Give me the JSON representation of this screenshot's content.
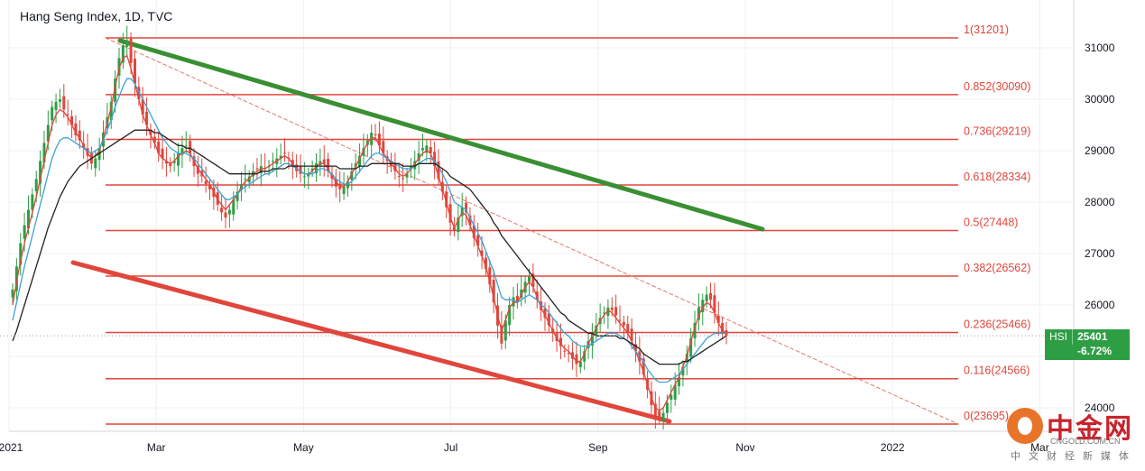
{
  "title": "Hang Seng Index, 1D, TVC",
  "chart_data": {
    "type": "candlestick",
    "symbol": "HSI",
    "last_price": "25401",
    "change": "-6.72%",
    "y_axis": {
      "ticks": [
        "31000",
        "30000",
        "29000",
        "28000",
        "27000",
        "26000",
        "25000",
        "24000"
      ],
      "ylim": [
        23600,
        31800
      ]
    },
    "x_axis": {
      "ticks": [
        "2021",
        "Mar",
        "May",
        "Jul",
        "Sep",
        "Nov",
        "2022",
        "Mar"
      ]
    },
    "fib_levels": [
      {
        "label": "1(31201)",
        "ratio": 1,
        "value": 31201
      },
      {
        "label": "0.852(30090)",
        "ratio": 0.852,
        "value": 30090
      },
      {
        "label": "0.736(29219)",
        "ratio": 0.736,
        "value": 29219
      },
      {
        "label": "0.618(28334)",
        "ratio": 0.618,
        "value": 28334
      },
      {
        "label": "0.5(27448)",
        "ratio": 0.5,
        "value": 27448
      },
      {
        "label": "0.382(26562)",
        "ratio": 0.382,
        "value": 26562
      },
      {
        "label": "0.236(25466)",
        "ratio": 0.236,
        "value": 25466
      },
      {
        "label": "0.116(24566)",
        "ratio": 0.116,
        "value": 24566
      },
      {
        "label": "0(23695)",
        "ratio": 0,
        "value": 23695
      }
    ],
    "trendlines": [
      {
        "name": "upper-channel",
        "color": "#3a8f33",
        "from": {
          "month": 1.75,
          "value": 31150
        },
        "to": {
          "month": 10.5,
          "value": 27470
        }
      },
      {
        "name": "lower-channel",
        "color": "#e0463c",
        "from": {
          "month": 0.5,
          "value": 26850
        },
        "to": {
          "month": 8.8,
          "value": 23720
        }
      },
      {
        "name": "diagonal-dashed",
        "color": "#e07a6e",
        "from": {
          "month": 1.75,
          "value": 31150
        },
        "to": {
          "month": 14.4,
          "value": 23700
        }
      }
    ],
    "close": [
      26300,
      26750,
      27200,
      27550,
      27850,
      28150,
      28450,
      28800,
      29150,
      29500,
      29850,
      29950,
      30000,
      29800,
      29700,
      29500,
      29300,
      29200,
      29050,
      28900,
      28750,
      28850,
      29050,
      29350,
      29650,
      29950,
      30400,
      30800,
      31050,
      31150,
      30700,
      30300,
      30000,
      29700,
      29500,
      29300,
      29150,
      28950,
      28850,
      28750,
      28700,
      28800,
      28950,
      29050,
      29100,
      28950,
      28700,
      28550,
      28500,
      28350,
      28250,
      28100,
      27950,
      27800,
      27700,
      27850,
      28050,
      28200,
      28350,
      28450,
      28500,
      28600,
      28650,
      28700,
      28650,
      28700,
      28800,
      28850,
      28900,
      28950,
      28850,
      28700,
      28600,
      28550,
      28500,
      28550,
      28650,
      28750,
      28800,
      28750,
      28600,
      28450,
      28300,
      28250,
      28300,
      28400,
      28600,
      28750,
      28900,
      29050,
      29200,
      29350,
      29300,
      29100,
      28950,
      28800,
      28700,
      28600,
      28500,
      28450,
      28550,
      28700,
      28800,
      28950,
      29050,
      29100,
      28950,
      28700,
      28450,
      28200,
      27900,
      27600,
      27450,
      27700,
      27900,
      27800,
      27550,
      27300,
      27150,
      26950,
      26700,
      26400,
      26050,
      25600,
      25250,
      25700,
      26000,
      26150,
      26050,
      26300,
      26450,
      26550,
      26350,
      26100,
      25900,
      25750,
      25600,
      25450,
      25300,
      25200,
      25100,
      25050,
      24950,
      24850,
      24900,
      25100,
      25300,
      25450,
      25600,
      25750,
      25850,
      25950,
      25900,
      25800,
      25700,
      25600,
      25450,
      25300,
      25100,
      24900,
      24650,
      24350,
      24050,
      23850,
      23800,
      23900,
      24100,
      24250,
      24450,
      24600,
      24800,
      25050,
      25350,
      25650,
      25950,
      26100,
      26200,
      26100,
      25850,
      25650,
      25450,
      25401
    ],
    "series": [
      {
        "name": "EMA fast",
        "color": "#e0463c",
        "values": [
          26000,
          26450,
          26850,
          27200,
          27500,
          27800,
          28100,
          28450,
          28800,
          29150,
          29500,
          29700,
          29800,
          29750,
          29650,
          29500,
          29350,
          29250,
          29100,
          28950,
          28850,
          28900,
          29000,
          29250,
          29550,
          29850,
          30250,
          30600,
          30800,
          30850,
          30600,
          30300,
          30000,
          29700,
          29500,
          29300,
          29150,
          28950,
          28850,
          28800,
          28750,
          28800,
          28900,
          28950,
          29000,
          28950,
          28800,
          28650,
          28550,
          28450,
          28350,
          28200,
          28050,
          27950,
          27850,
          27950,
          28050,
          28150,
          28300,
          28400,
          28450,
          28550,
          28600,
          28650,
          28650,
          28700,
          28750,
          28800,
          28850,
          28900,
          28850,
          28750,
          28650,
          28600,
          28550,
          28550,
          28600,
          28700,
          28750,
          28750,
          28650,
          28500,
          28400,
          28300,
          28300,
          28400,
          28550,
          28700,
          28850,
          29000,
          29150,
          29250,
          29250,
          29100,
          28950,
          28850,
          28750,
          28650,
          28550,
          28500,
          28550,
          28650,
          28750,
          28850,
          28950,
          29000,
          28950,
          28750,
          28500,
          28250,
          28000,
          27700,
          27500,
          27650,
          27800,
          27750,
          27550,
          27350,
          27150,
          26950,
          26750,
          26450,
          26150,
          25800,
          25500,
          25700,
          25950,
          26050,
          26050,
          26200,
          26350,
          26450,
          26350,
          26150,
          25950,
          25800,
          25650,
          25500,
          25350,
          25250,
          25150,
          25100,
          25000,
          24900,
          24900,
          25050,
          25250,
          25400,
          25550,
          25700,
          25800,
          25900,
          25850,
          25750,
          25650,
          25550,
          25450,
          25300,
          25100,
          24900,
          24700,
          24450,
          24200,
          24000,
          23950,
          24000,
          24150,
          24300,
          24450,
          24600,
          24800,
          25000,
          25300,
          25550,
          25800,
          25950,
          26050,
          26000,
          25850,
          25650,
          25500,
          25450
        ]
      },
      {
        "name": "EMA mid",
        "color": "#3aa3d6",
        "values": [
          25700,
          26050,
          26400,
          26750,
          27050,
          27350,
          27650,
          27950,
          28250,
          28550,
          28850,
          29050,
          29200,
          29250,
          29250,
          29200,
          29150,
          29100,
          29050,
          29000,
          28950,
          29000,
          29050,
          29200,
          29400,
          29600,
          29850,
          30050,
          30250,
          30400,
          30400,
          30300,
          30150,
          30000,
          29850,
          29700,
          29550,
          29400,
          29250,
          29150,
          29050,
          29000,
          28950,
          28950,
          28950,
          28900,
          28850,
          28750,
          28650,
          28550,
          28450,
          28350,
          28250,
          28150,
          28050,
          28050,
          28100,
          28150,
          28250,
          28300,
          28350,
          28400,
          28450,
          28500,
          28550,
          28550,
          28600,
          28650,
          28700,
          28750,
          28750,
          28700,
          28650,
          28600,
          28550,
          28550,
          28550,
          28600,
          28650,
          28650,
          28600,
          28550,
          28450,
          28400,
          28350,
          28350,
          28400,
          28500,
          28600,
          28700,
          28800,
          28900,
          28950,
          28950,
          28900,
          28850,
          28800,
          28750,
          28700,
          28650,
          28650,
          28650,
          28700,
          28750,
          28800,
          28850,
          28850,
          28800,
          28700,
          28550,
          28400,
          28200,
          28000,
          27950,
          27900,
          27850,
          27700,
          27550,
          27400,
          27250,
          27050,
          26850,
          26650,
          26400,
          26150,
          26100,
          26100,
          26100,
          26050,
          26100,
          26150,
          26200,
          26150,
          26100,
          26000,
          25950,
          25850,
          25750,
          25650,
          25550,
          25450,
          25400,
          25300,
          25250,
          25200,
          25200,
          25200,
          25250,
          25300,
          25350,
          25400,
          25450,
          25450,
          25450,
          25400,
          25350,
          25300,
          25200,
          25100,
          25000,
          24900,
          24750,
          24650,
          24550,
          24500,
          24500,
          24500,
          24550,
          24600,
          24650,
          24750,
          24850,
          24950,
          25050,
          25150,
          25250,
          25350,
          25400,
          25450,
          25450,
          25450,
          25450
        ]
      },
      {
        "name": "EMA slow",
        "color": "#222222",
        "values": [
          25300,
          25500,
          25750,
          26000,
          26250,
          26500,
          26750,
          27000,
          27250,
          27500,
          27700,
          27900,
          28100,
          28250,
          28400,
          28500,
          28600,
          28700,
          28750,
          28800,
          28850,
          28900,
          28950,
          29000,
          29050,
          29100,
          29150,
          29200,
          29250,
          29300,
          29350,
          29400,
          29400,
          29400,
          29400,
          29400,
          29350,
          29350,
          29300,
          29250,
          29200,
          29150,
          29100,
          29100,
          29050,
          29050,
          29000,
          28950,
          28900,
          28850,
          28800,
          28750,
          28700,
          28650,
          28600,
          28550,
          28550,
          28550,
          28550,
          28550,
          28550,
          28550,
          28550,
          28600,
          28600,
          28600,
          28650,
          28650,
          28650,
          28650,
          28700,
          28700,
          28700,
          28700,
          28700,
          28700,
          28700,
          28700,
          28700,
          28700,
          28700,
          28700,
          28700,
          28650,
          28650,
          28650,
          28650,
          28650,
          28700,
          28700,
          28700,
          28750,
          28750,
          28750,
          28750,
          28750,
          28750,
          28750,
          28750,
          28700,
          28700,
          28700,
          28700,
          28750,
          28750,
          28750,
          28750,
          28750,
          28700,
          28650,
          28600,
          28500,
          28450,
          28400,
          28350,
          28300,
          28250,
          28150,
          28050,
          27950,
          27850,
          27750,
          27600,
          27500,
          27350,
          27250,
          27150,
          27050,
          26950,
          26850,
          26750,
          26650,
          26550,
          26450,
          26350,
          26250,
          26150,
          26050,
          25950,
          25850,
          25800,
          25700,
          25650,
          25600,
          25550,
          25500,
          25450,
          25450,
          25400,
          25400,
          25400,
          25400,
          25400,
          25400,
          25350,
          25350,
          25300,
          25250,
          25200,
          25150,
          25050,
          25000,
          24950,
          24900,
          24850,
          24850,
          24850,
          24850,
          24850,
          24850,
          24900,
          24900,
          24950,
          25000,
          25050,
          25100,
          25150,
          25200,
          25250,
          25300,
          25350,
          25400
        ]
      }
    ],
    "grid": true
  },
  "tag": {
    "symbol": "HSI",
    "value": "25401",
    "change": "-6.72%"
  },
  "watermark": {
    "brand": "中金网",
    "url": "CNGOLD.COM.CN",
    "sub": "中文财经新媒体"
  }
}
